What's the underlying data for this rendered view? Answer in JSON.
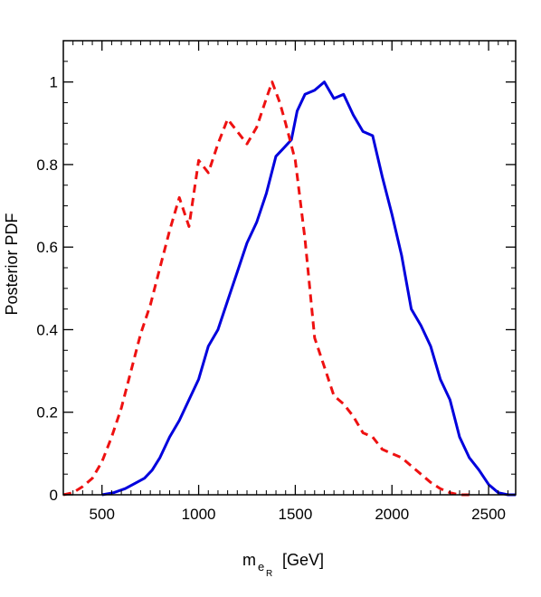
{
  "chart_data": {
    "type": "line",
    "ylabel": "Posterior PDF",
    "xlabel": {
      "main": "m",
      "sub1": "e",
      "sub2": "R",
      "unit": "[GeV]"
    },
    "xlim": [
      300,
      2640
    ],
    "ylim": [
      0,
      1.1
    ],
    "xticks": [
      500,
      1000,
      1500,
      2000,
      2500
    ],
    "xticklabels": [
      "500",
      "1000",
      "1500",
      "2000",
      "2500"
    ],
    "yticks": [
      0,
      0.2,
      0.4,
      0.6,
      0.8,
      1
    ],
    "yticklabels": [
      "0",
      "0.2",
      "0.4",
      "0.6",
      "0.8",
      "1"
    ],
    "grid": false,
    "series": [
      {
        "color": "#0000dd",
        "style": "solid",
        "x": [
          500,
          560,
          620,
          680,
          720,
          760,
          800,
          850,
          900,
          950,
          1000,
          1050,
          1100,
          1150,
          1200,
          1250,
          1300,
          1350,
          1400,
          1440,
          1480,
          1510,
          1550,
          1600,
          1650,
          1700,
          1750,
          1800,
          1850,
          1900,
          1950,
          2000,
          2050,
          2100,
          2150,
          2200,
          2250,
          2300,
          2350,
          2400,
          2450,
          2500,
          2550,
          2600,
          2640
        ],
        "y": [
          0,
          0.005,
          0.015,
          0.03,
          0.04,
          0.06,
          0.09,
          0.14,
          0.18,
          0.23,
          0.28,
          0.36,
          0.4,
          0.47,
          0.54,
          0.61,
          0.66,
          0.73,
          0.82,
          0.84,
          0.86,
          0.93,
          0.97,
          0.98,
          1.0,
          0.96,
          0.97,
          0.92,
          0.88,
          0.87,
          0.77,
          0.68,
          0.58,
          0.45,
          0.41,
          0.36,
          0.28,
          0.23,
          0.14,
          0.09,
          0.06,
          0.025,
          0.005,
          0.0,
          0.0
        ]
      },
      {
        "color": "#ee1111",
        "style": "dashed",
        "x": [
          300,
          350,
          400,
          450,
          500,
          550,
          600,
          650,
          700,
          750,
          800,
          850,
          900,
          950,
          1000,
          1050,
          1100,
          1150,
          1200,
          1250,
          1300,
          1350,
          1380,
          1420,
          1450,
          1500,
          1550,
          1600,
          1650,
          1700,
          1750,
          1800,
          1850,
          1900,
          1950,
          2000,
          2050,
          2100,
          2150,
          2200,
          2250,
          2300,
          2350,
          2400
        ],
        "y": [
          0,
          0.005,
          0.02,
          0.04,
          0.08,
          0.14,
          0.21,
          0.3,
          0.39,
          0.46,
          0.55,
          0.64,
          0.72,
          0.65,
          0.81,
          0.78,
          0.85,
          0.91,
          0.88,
          0.85,
          0.89,
          0.96,
          1.0,
          0.95,
          0.9,
          0.81,
          0.62,
          0.38,
          0.31,
          0.24,
          0.22,
          0.19,
          0.15,
          0.14,
          0.11,
          0.1,
          0.09,
          0.07,
          0.05,
          0.03,
          0.015,
          0.005,
          0.0,
          0.0
        ]
      }
    ]
  }
}
